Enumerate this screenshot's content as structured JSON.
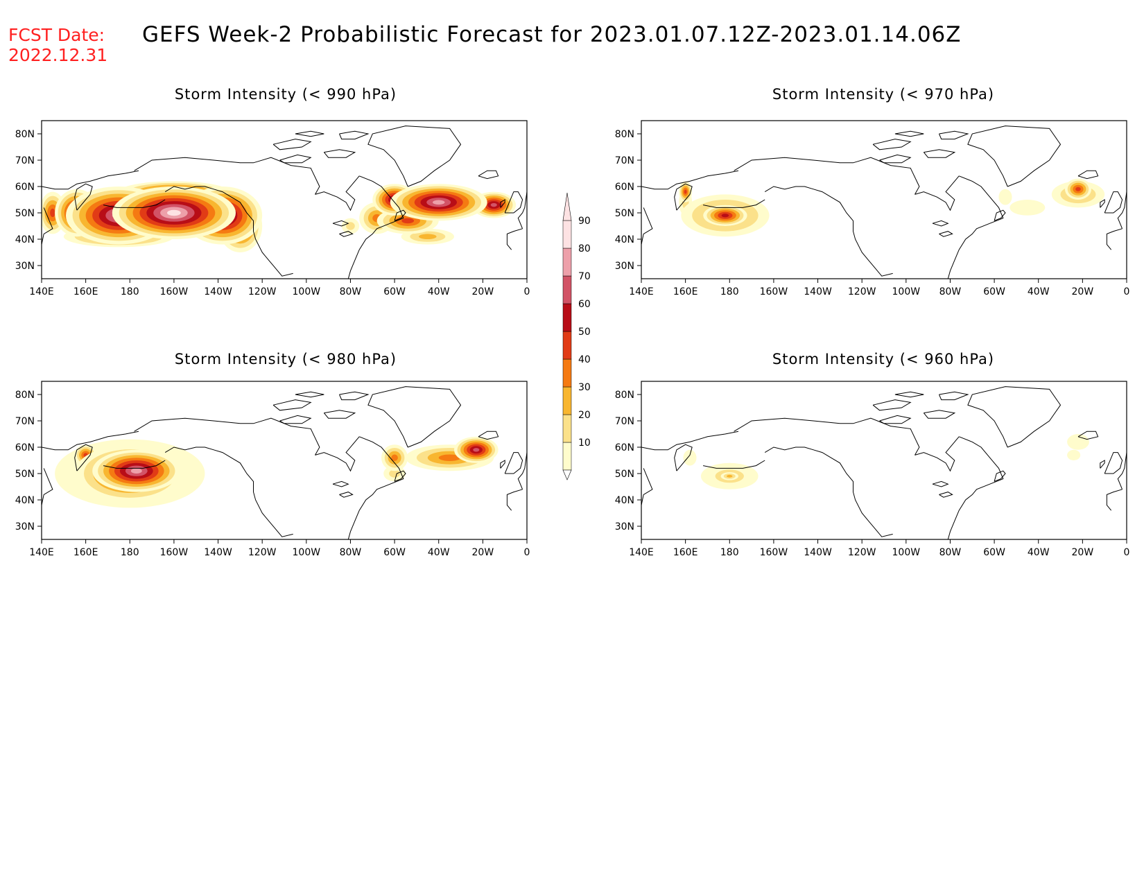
{
  "header": {
    "fcst_label": "FCST Date:",
    "fcst_date": "2022.12.31",
    "title": "GEFS Week-2 Probabilistic Forecast for 2023.01.07.12Z-2023.01.14.06Z"
  },
  "colors": {
    "scale": [
      "#fffccc",
      "#fbe18a",
      "#f8b630",
      "#f57a12",
      "#e13b16",
      "#b80d17",
      "#d25366",
      "#eda0aa",
      "#fde2e3"
    ],
    "coast": "#000000",
    "frame": "#000000"
  },
  "colorbar": {
    "levels": [
      "10",
      "20",
      "30",
      "40",
      "50",
      "60",
      "70",
      "80",
      "90"
    ]
  },
  "axes": {
    "lat_ticks": [
      "30N",
      "40N",
      "50N",
      "60N",
      "70N",
      "80N"
    ],
    "lon_ticks": [
      "140E",
      "160E",
      "180",
      "160W",
      "140W",
      "120W",
      "100W",
      "80W",
      "60W",
      "40W",
      "20W",
      "0"
    ]
  },
  "panels": [
    {
      "id": "p990",
      "title": "Storm Intensity (< 990 hPa)",
      "blobs": [
        {
          "lon": 200,
          "lat": 50,
          "rx": 28,
          "ry": 10,
          "v": 95
        },
        {
          "lon": 175,
          "lat": 49,
          "rx": 24,
          "ry": 11,
          "v": 88
        },
        {
          "lon": 222,
          "lat": 49,
          "rx": 18,
          "ry": 11,
          "v": 85
        },
        {
          "lon": 156,
          "lat": 50,
          "rx": 10,
          "ry": 9,
          "v": 70
        },
        {
          "lon": 145,
          "lat": 50,
          "rx": 6,
          "ry": 8,
          "v": 55
        },
        {
          "lon": 230,
          "lat": 45,
          "rx": 10,
          "ry": 10,
          "v": 60
        },
        {
          "lon": 175,
          "lat": 41,
          "rx": 25,
          "ry": 4,
          "v": 50
        },
        {
          "lon": 200,
          "lat": 58,
          "rx": 25,
          "ry": 4,
          "v": 60
        },
        {
          "lon": 320,
          "lat": 54,
          "rx": 22,
          "ry": 7,
          "v": 88
        },
        {
          "lon": 300,
          "lat": 55,
          "rx": 10,
          "ry": 6,
          "v": 75
        },
        {
          "lon": 345,
          "lat": 53,
          "rx": 10,
          "ry": 5,
          "v": 70
        },
        {
          "lon": 306,
          "lat": 47,
          "rx": 14,
          "ry": 5,
          "v": 50
        },
        {
          "lon": 292,
          "lat": 48,
          "rx": 8,
          "ry": 6,
          "v": 40
        },
        {
          "lon": 280,
          "lat": 45,
          "rx": 4,
          "ry": 3,
          "v": 20
        },
        {
          "lon": 315,
          "lat": 41,
          "rx": 12,
          "ry": 3,
          "v": 30
        }
      ]
    },
    {
      "id": "p970",
      "title": "Storm Intensity (< 970 hPa)",
      "blobs": [
        {
          "lon": 178,
          "lat": 49,
          "rx": 20,
          "ry": 8,
          "v": 40
        },
        {
          "lon": 178,
          "lat": 49,
          "rx": 10,
          "ry": 4,
          "v": 60
        },
        {
          "lon": 160,
          "lat": 58,
          "rx": 3,
          "ry": 4,
          "v": 50
        },
        {
          "lon": 160,
          "lat": 54,
          "rx": 3,
          "ry": 5,
          "v": 20
        },
        {
          "lon": 338,
          "lat": 59,
          "rx": 6,
          "ry": 4,
          "v": 55
        },
        {
          "lon": 338,
          "lat": 57,
          "rx": 12,
          "ry": 5,
          "v": 35
        },
        {
          "lon": 315,
          "lat": 52,
          "rx": 8,
          "ry": 3,
          "v": 12
        },
        {
          "lon": 305,
          "lat": 56,
          "rx": 3,
          "ry": 3,
          "v": 10
        }
      ]
    },
    {
      "id": "p980",
      "title": "Storm Intensity (< 980 hPa)",
      "blobs": [
        {
          "lon": 183,
          "lat": 51,
          "rx": 20,
          "ry": 8,
          "v": 85
        },
        {
          "lon": 180,
          "lat": 50,
          "rx": 25,
          "ry": 11,
          "v": 65
        },
        {
          "lon": 180,
          "lat": 50,
          "rx": 34,
          "ry": 13,
          "v": 25
        },
        {
          "lon": 160,
          "lat": 57,
          "rx": 5,
          "ry": 4,
          "v": 55
        },
        {
          "lon": 337,
          "lat": 59,
          "rx": 10,
          "ry": 5,
          "v": 75
        },
        {
          "lon": 325,
          "lat": 56,
          "rx": 20,
          "ry": 5,
          "v": 45
        },
        {
          "lon": 300,
          "lat": 56,
          "rx": 6,
          "ry": 5,
          "v": 40
        },
        {
          "lon": 300,
          "lat": 50,
          "rx": 5,
          "ry": 3,
          "v": 20
        }
      ]
    },
    {
      "id": "p960",
      "title": "Storm Intensity (< 960 hPa)",
      "blobs": [
        {
          "lon": 180,
          "lat": 49,
          "rx": 13,
          "ry": 5,
          "v": 20
        },
        {
          "lon": 180,
          "lat": 49,
          "rx": 4,
          "ry": 1.5,
          "v": 35
        },
        {
          "lon": 162,
          "lat": 56,
          "rx": 3,
          "ry": 3,
          "v": 15
        },
        {
          "lon": 338,
          "lat": 62,
          "rx": 5,
          "ry": 3,
          "v": 18
        },
        {
          "lon": 336,
          "lat": 57,
          "rx": 3,
          "ry": 2,
          "v": 12
        }
      ]
    }
  ]
}
